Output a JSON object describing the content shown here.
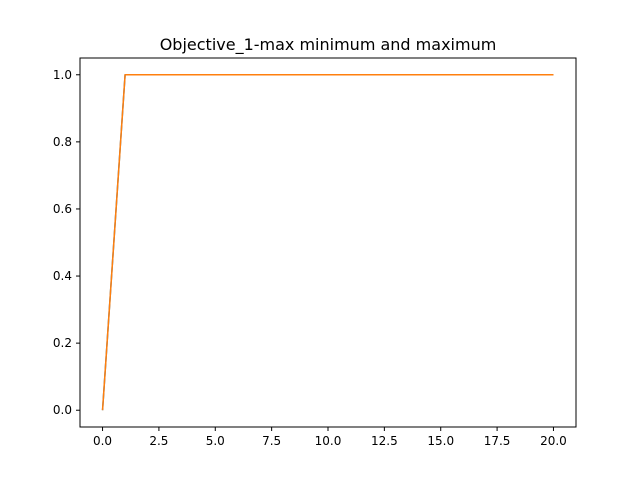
{
  "chart_data": {
    "type": "line",
    "title": "Objective_1-max minimum and maximum",
    "xlabel": "",
    "ylabel": "",
    "xlim": [
      -1,
      21
    ],
    "ylim": [
      -0.05,
      1.05
    ],
    "xticks": [
      0.0,
      2.5,
      5.0,
      7.5,
      10.0,
      12.5,
      15.0,
      17.5,
      20.0
    ],
    "xtick_labels": [
      "0.0",
      "2.5",
      "5.0",
      "7.5",
      "10.0",
      "12.5",
      "15.0",
      "17.5",
      "20.0"
    ],
    "yticks": [
      0.0,
      0.2,
      0.4,
      0.6,
      0.8,
      1.0
    ],
    "ytick_labels": [
      "0.0",
      "0.2",
      "0.4",
      "0.6",
      "0.8",
      "1.0"
    ],
    "grid": false,
    "legend": "none",
    "series": [
      {
        "color": "#1f77b4",
        "x": [
          0,
          1,
          2,
          3,
          4,
          5,
          6,
          7,
          8,
          9,
          10,
          11,
          12,
          13,
          14,
          15,
          16,
          17,
          18,
          19,
          20
        ],
        "y": [
          0,
          1,
          1,
          1,
          1,
          1,
          1,
          1,
          1,
          1,
          1,
          1,
          1,
          1,
          1,
          1,
          1,
          1,
          1,
          1,
          1
        ]
      },
      {
        "color": "#ff7f0e",
        "x": [
          0,
          1,
          2,
          3,
          4,
          5,
          6,
          7,
          8,
          9,
          10,
          11,
          12,
          13,
          14,
          15,
          16,
          17,
          18,
          19,
          20
        ],
        "y": [
          0,
          1,
          1,
          1,
          1,
          1,
          1,
          1,
          1,
          1,
          1,
          1,
          1,
          1,
          1,
          1,
          1,
          1,
          1,
          1,
          1
        ]
      }
    ]
  }
}
